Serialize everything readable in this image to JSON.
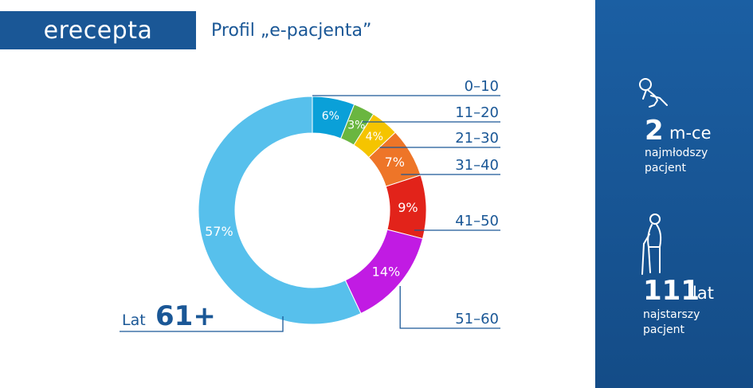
{
  "header": {
    "logo_text": "erecepta",
    "title": "Profil „e-pacjenta”"
  },
  "chart_data": {
    "type": "pie",
    "title": "",
    "categories": [
      "0–10",
      "11–20",
      "21–30",
      "31–40",
      "41–50",
      "51–60",
      "Lat 61+"
    ],
    "values": [
      6,
      3,
      4,
      7,
      9,
      14,
      57
    ],
    "value_labels": [
      "6%",
      "3%",
      "4%",
      "7%",
      "9%",
      "14%",
      "57%"
    ],
    "colors": [
      "#0aa0d8",
      "#6ab640",
      "#f5c400",
      "#ee7528",
      "#e2231a",
      "#c11be3",
      "#57c0ec"
    ],
    "donut": true,
    "big_label_prefix": "Lat",
    "big_label_value": "61+",
    "legend": "callout-lines-right"
  },
  "side_panel": {
    "youngest": {
      "value": "2",
      "unit": "m-ce",
      "label_line1": "najmłodszy",
      "label_line2": "pacjent",
      "icon": "baby-icon"
    },
    "oldest": {
      "value": "111",
      "unit": "lat",
      "label_line1": "najstarszy",
      "label_line2": "pacjent",
      "icon": "elderly-person-icon"
    }
  },
  "colors": {
    "brand_blue": "#1a5796",
    "panel_blue": "#1b5fa3",
    "callout_line": "#1a5796"
  }
}
